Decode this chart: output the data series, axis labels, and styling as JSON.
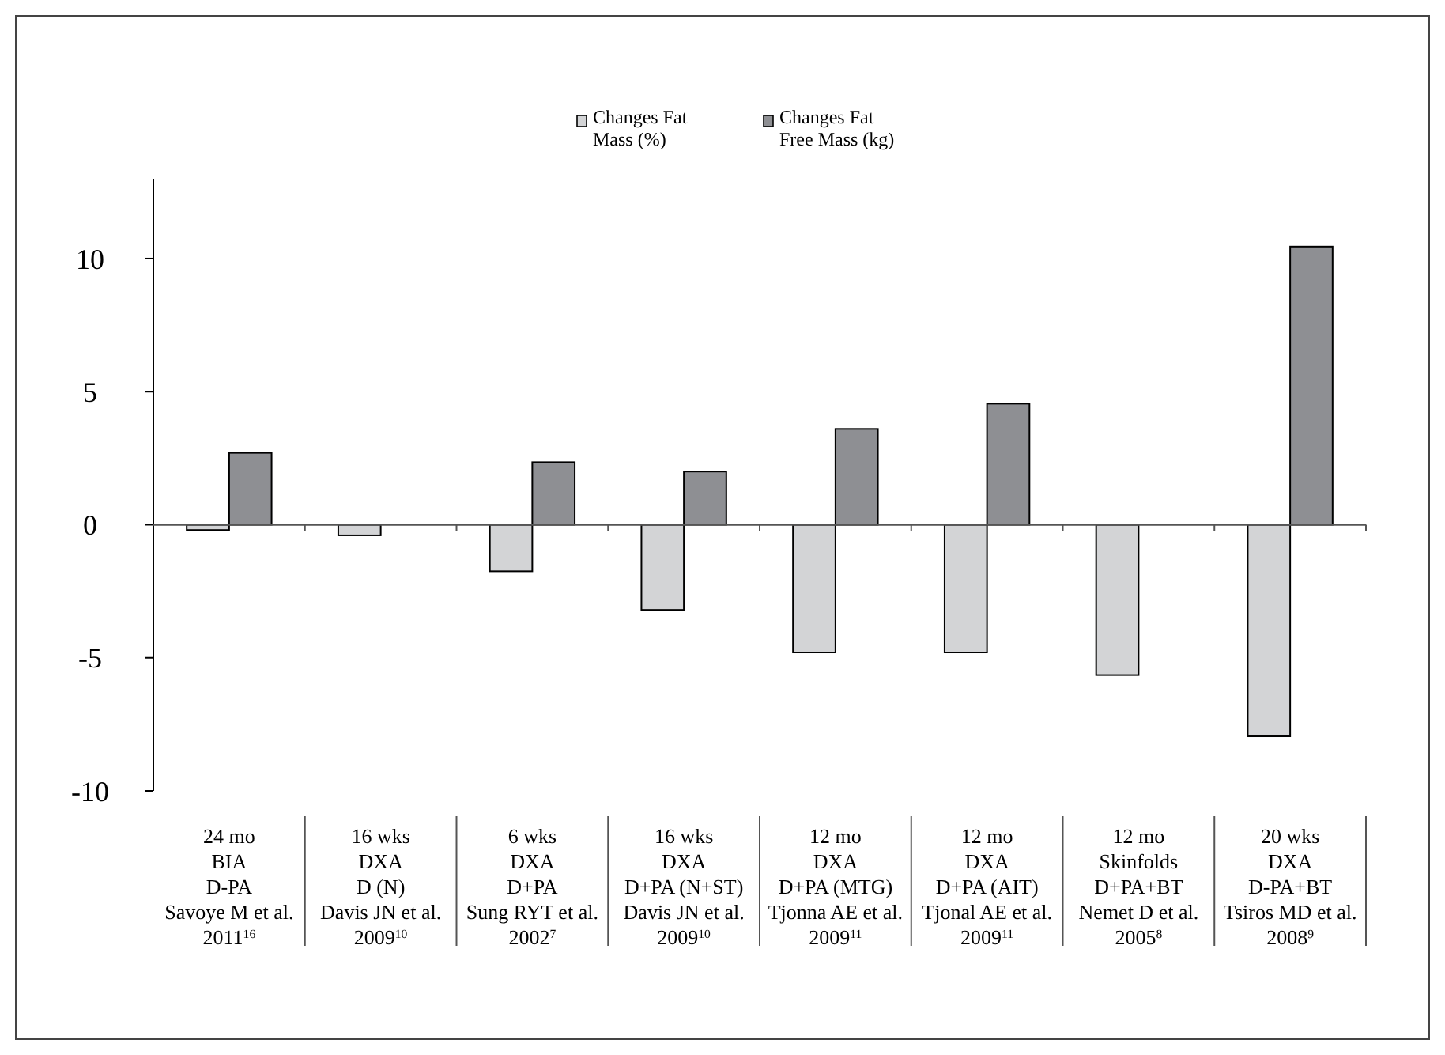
{
  "chart_data": {
    "type": "bar",
    "categories": [
      "24 mo\nBIA\nD-PA\nSavoye M et al.\n2011$^{16}$",
      "16 wks\nDXA\nD (N)\nDavis JN et al.\n2009$^{10}$",
      "6 wks\nDXA\nD+PA\nSung RYT et al.\n2002$^{7}$",
      "16 wks\nDXA\nD+PA (N+ST)\nDavis JN et al.\n2009$^{10}$",
      "12 mo\nDXA\nD+PA (MTG)\nTjonna AE et al.\n2009$^{11}$",
      "12 mo\nDXA\nD+PA (AIT)\nTjonal AE et al.\n2009$^{11}$",
      "12 mo\nSkinfolds\nD+PA+BT\nNemet D et al.\n2005$^{8}$",
      "20 wks\nDXA\nD-PA+BT\nTsiros MD et al.\n2008$^{9}$"
    ],
    "series": [
      {
        "name": "Changes Fat\nMass (%)",
        "color": "#d3d4d6",
        "values": [
          -0.2,
          -0.4,
          -1.75,
          -3.2,
          -4.8,
          -4.8,
          -5.65,
          -7.95
        ]
      },
      {
        "name": "Changes Fat\nFree Mass (kg)",
        "color": "#8e8f93",
        "values": [
          2.7,
          null,
          2.35,
          2.0,
          3.6,
          4.55,
          null,
          10.45
        ]
      }
    ],
    "ylim": [
      -10,
      13
    ],
    "yticks": [
      -10,
      -5,
      0,
      5,
      10
    ],
    "legend": "top"
  }
}
